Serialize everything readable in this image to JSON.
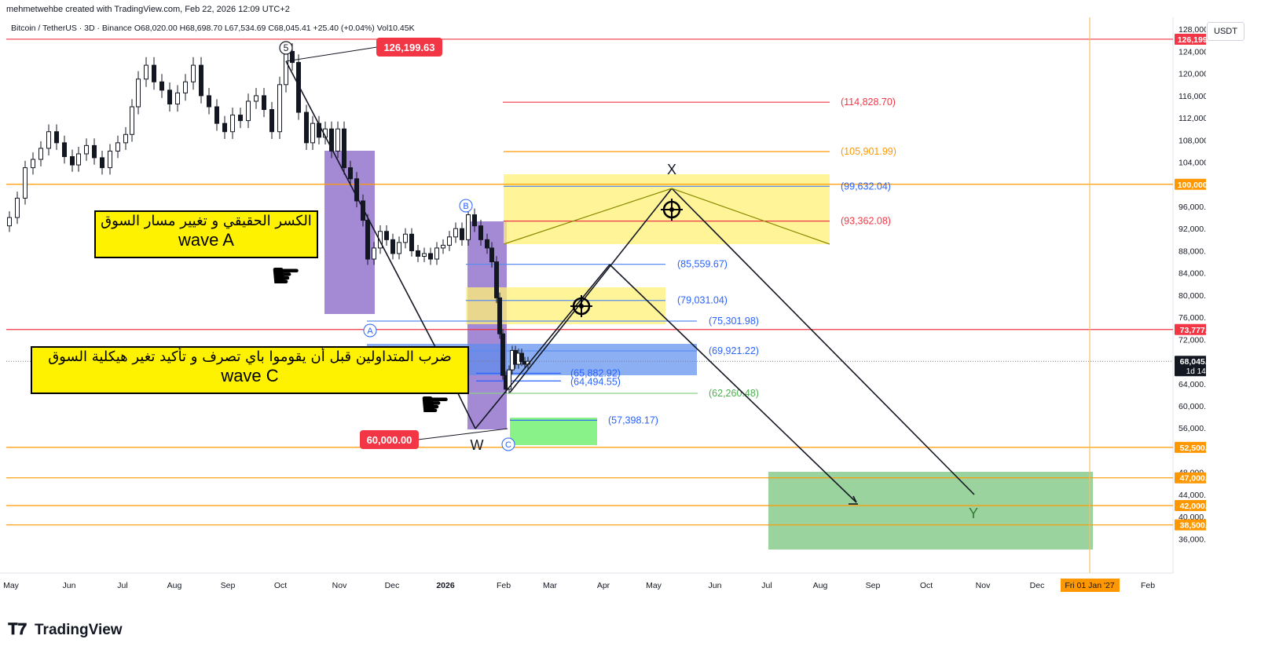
{
  "header": {
    "credit": "mehmetwehbe created with TradingView.com, Feb 22, 2026 12:09 UTC+2",
    "symbol": "Bitcoin / TetherUS · 3D · Binance",
    "open": "O68,020.00",
    "high": "H68,698.70",
    "low": "L67,534.69",
    "close": "C68,045.41",
    "change": "+25.40 (+0.04%)",
    "volume": "Vol10.45K"
  },
  "price_scale": {
    "currency": "USDT",
    "ticks": [
      "128,000.00",
      "124,000.00",
      "120,000.00",
      "116,000.00",
      "112,000.00",
      "108,000.00",
      "104,000.00",
      "100,000.00",
      "96,000.00",
      "92,000.00",
      "88,000.00",
      "84,000.00",
      "80,000.00",
      "76,000.00",
      "72,000.00",
      "68,000.00",
      "64,000.00",
      "60,000.00",
      "56,000.00",
      "52,500.00",
      "48,000.00",
      "44,000.00",
      "40,000.00",
      "36,000.00"
    ],
    "ticks_values": [
      128000,
      124000,
      120000,
      116000,
      112000,
      108000,
      104000,
      100000,
      96000,
      92000,
      88000,
      84000,
      80000,
      76000,
      72000,
      68000,
      64000,
      60000,
      56000,
      52500,
      48000,
      44000,
      40000,
      36000
    ],
    "badges": [
      {
        "label": "126,199.63",
        "value": 126199.63,
        "color": "#f23645"
      },
      {
        "label": "100,000.00",
        "value": 100000,
        "color": "#ff9800"
      },
      {
        "label": "73,777.00",
        "value": 73777,
        "color": "#f23645"
      },
      {
        "label": "68,045.41",
        "sub": "1d 14h",
        "value": 68045.41,
        "color": "#131722"
      },
      {
        "label": "52,500.00",
        "value": 52500,
        "color": "#ff9800"
      },
      {
        "label": "47,000.00",
        "value": 47000,
        "color": "#ff9800"
      },
      {
        "label": "42,000.00",
        "value": 42000,
        "color": "#ff9800"
      },
      {
        "label": "38,500.00",
        "value": 38500,
        "color": "#ff9800"
      }
    ]
  },
  "time_scale": {
    "labels": [
      "May",
      "Jun",
      "Jul",
      "Aug",
      "Sep",
      "Oct",
      "Nov",
      "Dec",
      "2026",
      "Feb",
      "Mar",
      "Apr",
      "May",
      "Jun",
      "Jul",
      "Aug",
      "Sep",
      "Oct",
      "Nov",
      "Dec",
      "Feb"
    ],
    "current_badge": "Fri 01 Jan '27"
  },
  "horizontal_levels": [
    {
      "price": 126199.63,
      "color": "#f23645"
    },
    {
      "price": 100000,
      "color": "#ff9800"
    },
    {
      "price": 73777,
      "color": "#f23645"
    },
    {
      "price": 52500,
      "color": "#ff9800"
    },
    {
      "price": 47000,
      "color": "#ff9800"
    },
    {
      "price": 42000,
      "color": "#ff9800"
    },
    {
      "price": 38500,
      "color": "#ff9800"
    }
  ],
  "fib_labels": [
    {
      "text": "(114,828.70)",
      "price": 114828.7,
      "color": "#f23645"
    },
    {
      "text": "(105,901.99)",
      "price": 105901.99,
      "color": "#ff9800"
    },
    {
      "text": "(99,632.04)",
      "price": 99632.04,
      "color": "#2962ff"
    },
    {
      "text": "(93,362.08)",
      "price": 93362.08,
      "color": "#f23645"
    },
    {
      "text": "(85,559.67)",
      "price": 85559.67,
      "color": "#2962ff"
    },
    {
      "text": "(79,031.04)",
      "price": 79031.04,
      "color": "#2962ff"
    },
    {
      "text": "(75,301.98)",
      "price": 75301.98,
      "color": "#2962ff"
    },
    {
      "text": "(69,921.22)",
      "price": 69921.22,
      "color": "#2962ff"
    },
    {
      "text": "(65,882.92)",
      "price": 65882.92,
      "color": "#2962ff"
    },
    {
      "text": "(64,494.55)",
      "price": 64494.55,
      "color": "#2962ff"
    },
    {
      "text": "(62,260.48)",
      "price": 62260.48,
      "color": "#4caf50"
    },
    {
      "text": "(57,398.17)",
      "price": 57398.17,
      "color": "#2962ff"
    }
  ],
  "callouts": [
    {
      "text": "126,199.63",
      "price": 126199.63
    },
    {
      "text": "60,000.00",
      "price": 60000
    }
  ],
  "wave_labels": {
    "five": "5",
    "a": "A",
    "b": "B",
    "c": "C",
    "w": "W",
    "x": "X",
    "y": "Y"
  },
  "notes": {
    "wave_a_ar": "الكسر الحقيقي و تغيير مسار السوق",
    "wave_a": "wave A",
    "wave_c_ar": "ضرب المتداولين قبل أن يقوموا باي تصرف و تأكيد تغير هيكلية السوق",
    "wave_c": "wave C"
  },
  "icons": {
    "hand": "pointing-hand-icon",
    "target": "crosshair-target-icon"
  },
  "brand": "TradingView",
  "colors": {
    "red": "#f23645",
    "orange": "#ff9800",
    "blue": "#2962ff",
    "green": "#4caf50",
    "purple_box": "#7e57c2",
    "yellow_box": "#fff176",
    "green_box": "#66bb6a"
  }
}
